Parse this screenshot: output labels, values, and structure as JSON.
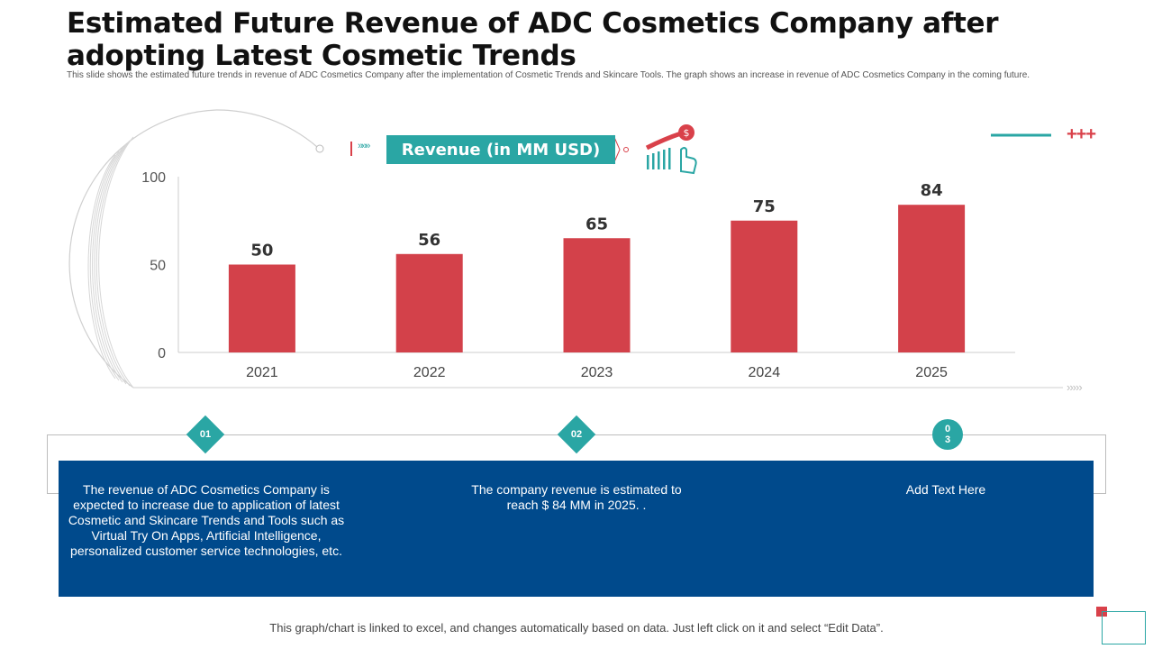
{
  "title": "Estimated Future Revenue of ADC Cosmetics Company after adopting Latest Cosmetic Trends",
  "subtitle": "This slide shows the estimated future trends in revenue of ADC Cosmetics Company after the implementation of Cosmetic Trends and Skincare Tools. The graph shows an increase in revenue of ADC Cosmetics Company in the coming future.",
  "banner": {
    "label": "Revenue (in MM USD)",
    "arrows": "»»»"
  },
  "decor": {
    "plus_marks": "+++",
    "axis_arrows": "›››››"
  },
  "colors": {
    "bar": "#d3414a",
    "teal": "#2aa6a4",
    "panel": "#004a8c",
    "accent_red": "#d9414a"
  },
  "chart_data": {
    "type": "bar",
    "title": "Revenue (in MM USD)",
    "categories": [
      "2021",
      "2022",
      "2023",
      "2024",
      "2025"
    ],
    "values": [
      50,
      56,
      65,
      75,
      84
    ],
    "ylim": [
      0,
      100
    ],
    "yticks": [
      "0",
      "50",
      "100"
    ],
    "xlabel": "",
    "ylabel": ""
  },
  "steps": [
    {
      "badge": "01",
      "text": "The revenue of ADC  Cosmetics Company is expected to increase due to application of latest Cosmetic  and Skincare Trends and Tools such as Virtual Try On Apps, Artificial Intelligence, personalized customer service technologies, etc."
    },
    {
      "badge": "02",
      "text": "The company revenue is estimated to reach $ 84 MM in 2025. ."
    },
    {
      "badge": "0\n3",
      "text": "Add Text Here"
    }
  ],
  "footer": "This graph/chart is linked to excel,  and changes  automatically based  on data.  Just left click on it and select  “Edit Data”."
}
